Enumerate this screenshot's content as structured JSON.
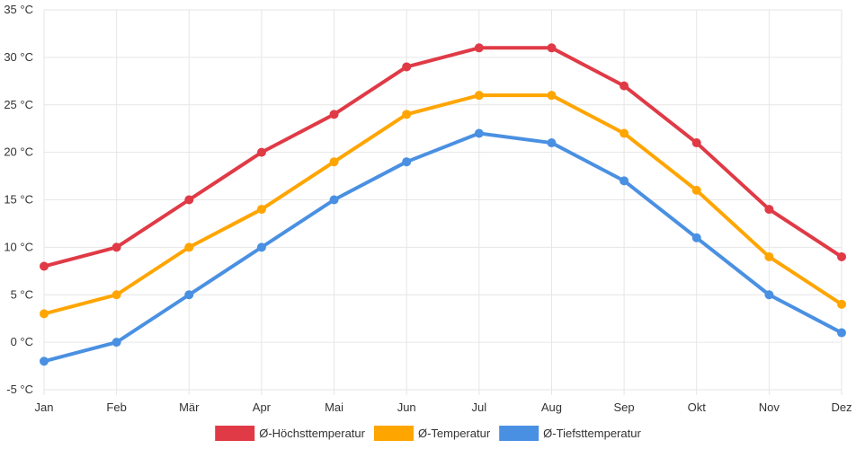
{
  "chart_data": {
    "type": "line",
    "categories": [
      "Jan",
      "Feb",
      "Mär",
      "Apr",
      "Mai",
      "Jun",
      "Jul",
      "Aug",
      "Sep",
      "Okt",
      "Nov",
      "Dez"
    ],
    "y_ticks": [
      "-5 °C",
      "0 °C",
      "5 °C",
      "10 °C",
      "15 °C",
      "20 °C",
      "25 °C",
      "30 °C",
      "35 °C"
    ],
    "ylim": [
      -5,
      35
    ],
    "y_step": 5,
    "grid": true,
    "legend_position": "bottom",
    "series": [
      {
        "name": "Ø-Höchsttemperatur",
        "color": "#e03a46",
        "values": [
          8,
          10,
          15,
          20,
          24,
          29,
          31,
          31,
          27,
          21,
          14,
          9
        ]
      },
      {
        "name": "Ø-Temperatur",
        "color": "#ffa500",
        "values": [
          3,
          5,
          10,
          14,
          19,
          24,
          26,
          26,
          22,
          16,
          9,
          4
        ]
      },
      {
        "name": "Ø-Tiefsttemperatur",
        "color": "#4a90e2",
        "values": [
          -2,
          0,
          5,
          10,
          15,
          19,
          22,
          21,
          17,
          11,
          5,
          1
        ]
      }
    ]
  }
}
